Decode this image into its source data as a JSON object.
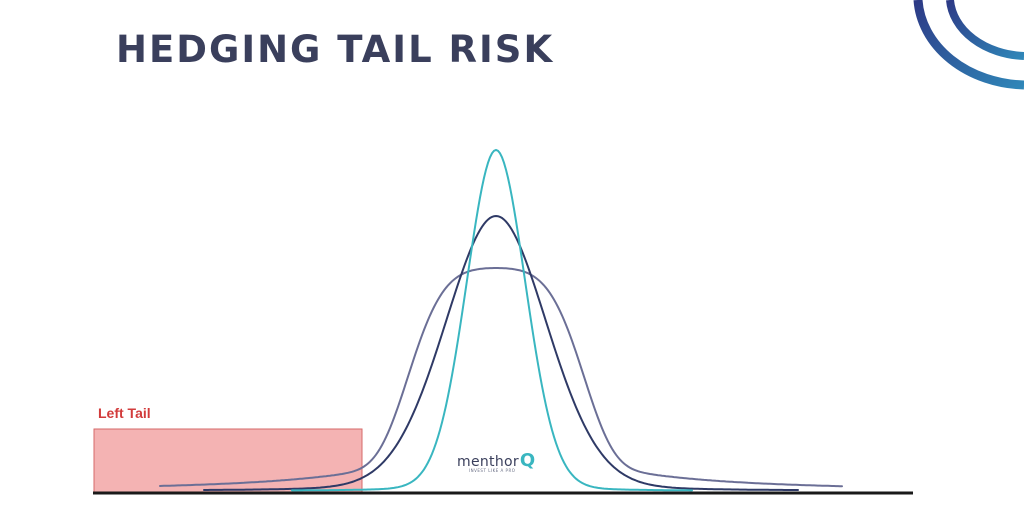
{
  "title": "HEDGING TAIL RISK",
  "left_tail_label": "Left Tail",
  "logo": {
    "word": "menthor",
    "mark": "Q",
    "tagline": "INVEST LIKE A PRO"
  },
  "colors": {
    "title": "#3a3f5c",
    "narrow_curve": "#39b6c0",
    "medium_curve": "#2f3a66",
    "wide_curve": "#6b6f96",
    "left_tail_fill": "#f4b3b3",
    "left_tail_border": "#d66a6a",
    "left_tail_label": "#d23b3b",
    "baseline": "#1a1a1a",
    "corner_arc_outer": "#2d3a86",
    "corner_arc_inner": "#2f86b8"
  },
  "curves": [
    {
      "id": "narrow",
      "desc": "narrow, tallest peak"
    },
    {
      "id": "medium",
      "desc": "medium peak"
    },
    {
      "id": "wide",
      "desc": "wide, flat-topped"
    }
  ]
}
